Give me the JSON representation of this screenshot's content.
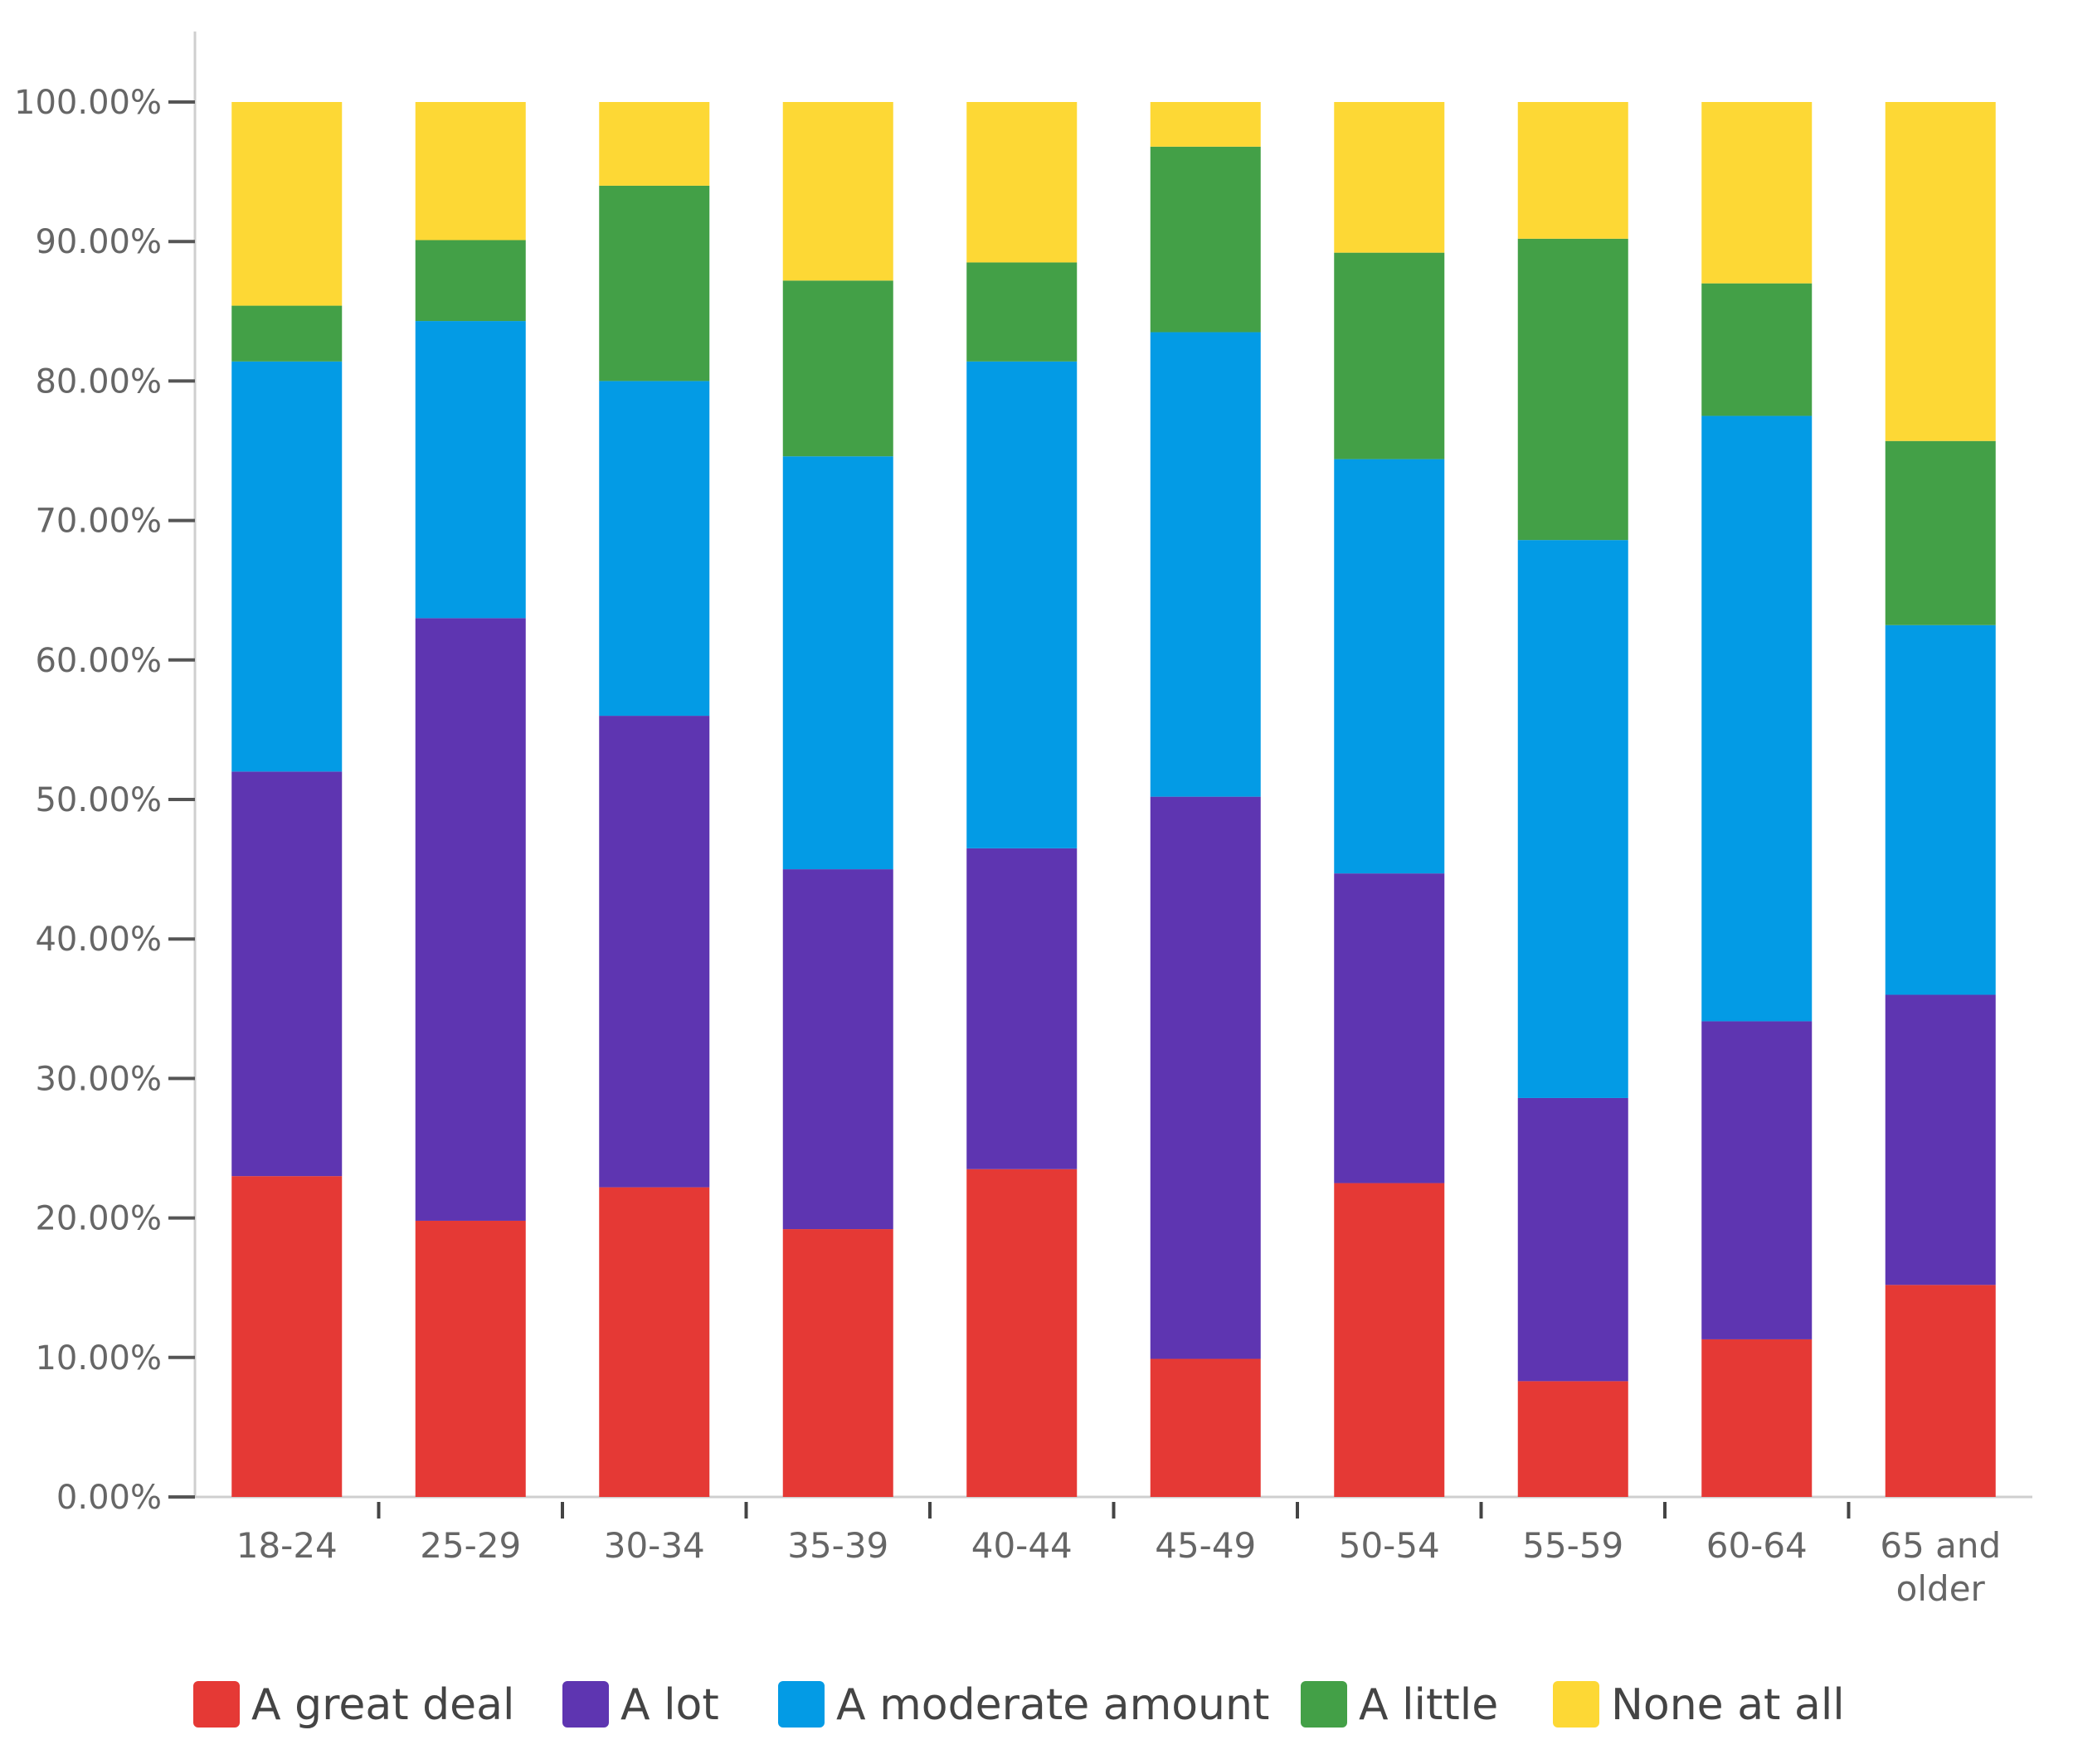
{
  "chart_data": {
    "type": "bar",
    "stacked": true,
    "categories": [
      "18-24",
      "25-29",
      "30-34",
      "35-39",
      "40-44",
      "45-49",
      "50-54",
      "55-59",
      "60-64",
      "65 and older"
    ],
    "category_lines": [
      [
        "18-24"
      ],
      [
        "25-29"
      ],
      [
        "30-34"
      ],
      [
        "35-39"
      ],
      [
        "40-44"
      ],
      [
        "45-49"
      ],
      [
        "50-54"
      ],
      [
        "55-59"
      ],
      [
        "60-64"
      ],
      [
        "65 and",
        "older"
      ]
    ],
    "series": [
      {
        "name": "A great deal",
        "color": "#e53935",
        "values": [
          23.0,
          19.8,
          22.2,
          19.2,
          23.5,
          9.9,
          22.5,
          8.3,
          11.3,
          15.2
        ]
      },
      {
        "name": "A lot",
        "color": "#5e35b1",
        "values": [
          29.0,
          43.2,
          33.8,
          25.8,
          23.0,
          40.3,
          22.2,
          20.3,
          22.8,
          20.8
        ]
      },
      {
        "name": "A moderate amount",
        "color": "#039be5",
        "values": [
          29.4,
          21.3,
          24.0,
          29.6,
          34.9,
          33.3,
          29.7,
          40.0,
          43.4,
          26.5
        ]
      },
      {
        "name": "A little",
        "color": "#43a047",
        "values": [
          4.0,
          5.8,
          14.0,
          12.6,
          7.1,
          13.3,
          14.8,
          21.6,
          9.5,
          13.2
        ]
      },
      {
        "name": "None at all",
        "color": "#fdd835",
        "values": [
          14.6,
          9.9,
          6.0,
          12.8,
          11.5,
          3.2,
          10.8,
          9.8,
          13.0,
          24.3
        ]
      }
    ],
    "y_ticks": [
      "0.00%",
      "10.00%",
      "20.00%",
      "30.00%",
      "40.00%",
      "50.00%",
      "60.00%",
      "70.00%",
      "80.00%",
      "90.00%",
      "100.00%"
    ],
    "ylim": [
      0,
      100
    ],
    "legend_position": "bottom",
    "grid": false
  }
}
